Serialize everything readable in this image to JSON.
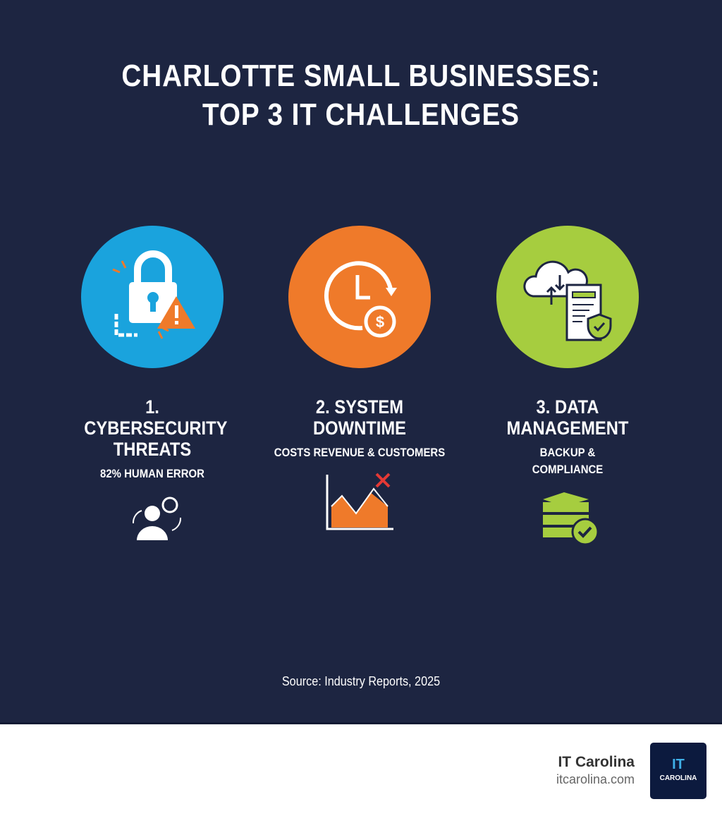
{
  "title": {
    "line1": "CHARLOTTE SMALL BUSINESSES:",
    "line2": "TOP 3 IT CHALLENGES"
  },
  "challenges": [
    {
      "heading": "1. CYBERSECURITY THREATS",
      "sub": "82% HUMAN ERROR",
      "color": "#1aa3dd",
      "icon": "padlock-warning-icon",
      "small_icon": "user-cycle-icon"
    },
    {
      "heading": "2. SYSTEM DOWNTIME",
      "sub": "COSTS REVENUE & CUSTOMERS",
      "color": "#ef7a2a",
      "icon": "clock-dollar-icon",
      "small_icon": "declining-chart-icon"
    },
    {
      "heading": "3. DATA MANAGEMENT",
      "sub": "BACKUP & COMPLIANCE",
      "color": "#a6cd3f",
      "icon": "cloud-document-shield-icon",
      "small_icon": "database-check-icon"
    }
  ],
  "source": "Source: Industry Reports, 2025",
  "footer": {
    "brand_name": "IT Carolina",
    "url": "itcarolina.com",
    "logo_it": "IT",
    "logo_text": "CAROLINA"
  }
}
